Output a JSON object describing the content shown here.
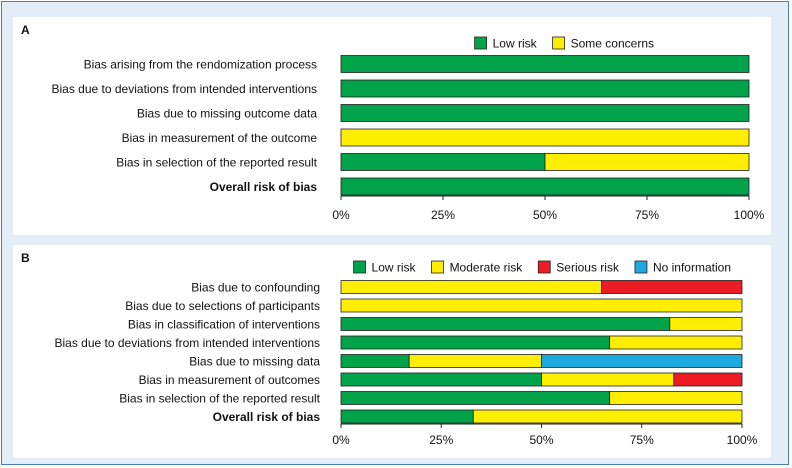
{
  "colors": {
    "low": "#00a24a",
    "some": "#ffee00",
    "moderate": "#ffee00",
    "serious": "#ed1c24",
    "noinfo": "#1ba9e0",
    "frame_bg": "#e3edf7",
    "frame_border": "#4a7fb0"
  },
  "chart_data": [
    {
      "panel": "A",
      "type": "bar",
      "orientation": "horizontal-stacked",
      "xlabel": "",
      "ylabel": "",
      "xlim": [
        0,
        100
      ],
      "x_ticks": [
        "0%",
        "25%",
        "50%",
        "75%",
        "100%"
      ],
      "legend_position": "top-right",
      "legend": [
        {
          "name": "Low risk",
          "color_key": "low"
        },
        {
          "name": "Some concerns",
          "color_key": "some"
        }
      ],
      "categories": [
        {
          "label": "Bias arising from the rendomization process",
          "bold": false
        },
        {
          "label": "Bias due to deviations from intended interventions",
          "bold": false
        },
        {
          "label": "Bias due to missing outcome data",
          "bold": false
        },
        {
          "label": "Bias in measurement of the outcome",
          "bold": false
        },
        {
          "label": "Bias in selection of the reported result",
          "bold": false
        },
        {
          "label": "Overall risk of bias",
          "bold": true
        }
      ],
      "series": [
        {
          "name": "Low risk",
          "color_key": "low",
          "values": [
            100,
            100,
            100,
            0,
            50,
            100
          ]
        },
        {
          "name": "Some concerns",
          "color_key": "some",
          "values": [
            0,
            0,
            0,
            100,
            50,
            0
          ]
        }
      ]
    },
    {
      "panel": "B",
      "type": "bar",
      "orientation": "horizontal-stacked",
      "xlabel": "",
      "ylabel": "",
      "xlim": [
        0,
        100
      ],
      "x_ticks": [
        "0%",
        "25%",
        "50%",
        "75%",
        "100%"
      ],
      "legend_position": "top-right",
      "legend": [
        {
          "name": "Low risk",
          "color_key": "low"
        },
        {
          "name": "Moderate risk",
          "color_key": "moderate"
        },
        {
          "name": "Serious risk",
          "color_key": "serious"
        },
        {
          "name": "No information",
          "color_key": "noinfo"
        }
      ],
      "categories": [
        {
          "label": "Bias due to confounding",
          "bold": false
        },
        {
          "label": "Bias due to selections of participants",
          "bold": false
        },
        {
          "label": "Bias in classification of interventions",
          "bold": false
        },
        {
          "label": "Bias due to deviations from intended interventions",
          "bold": false
        },
        {
          "label": "Bias due to missing data",
          "bold": false
        },
        {
          "label": "Bias in measurement of outcomes",
          "bold": false
        },
        {
          "label": "Bias in selection of the reported result",
          "bold": false
        },
        {
          "label": "Overall risk of bias",
          "bold": true
        }
      ],
      "series": [
        {
          "name": "Low risk",
          "color_key": "low",
          "values": [
            0,
            0,
            82,
            67,
            17,
            50,
            67,
            33
          ]
        },
        {
          "name": "Moderate risk",
          "color_key": "moderate",
          "values": [
            65,
            100,
            18,
            33,
            33,
            33,
            33,
            67
          ]
        },
        {
          "name": "Serious risk",
          "color_key": "serious",
          "values": [
            35,
            0,
            0,
            0,
            0,
            17,
            0,
            0
          ]
        },
        {
          "name": "No information",
          "color_key": "noinfo",
          "values": [
            0,
            0,
            0,
            0,
            50,
            0,
            0,
            0
          ]
        }
      ]
    }
  ]
}
